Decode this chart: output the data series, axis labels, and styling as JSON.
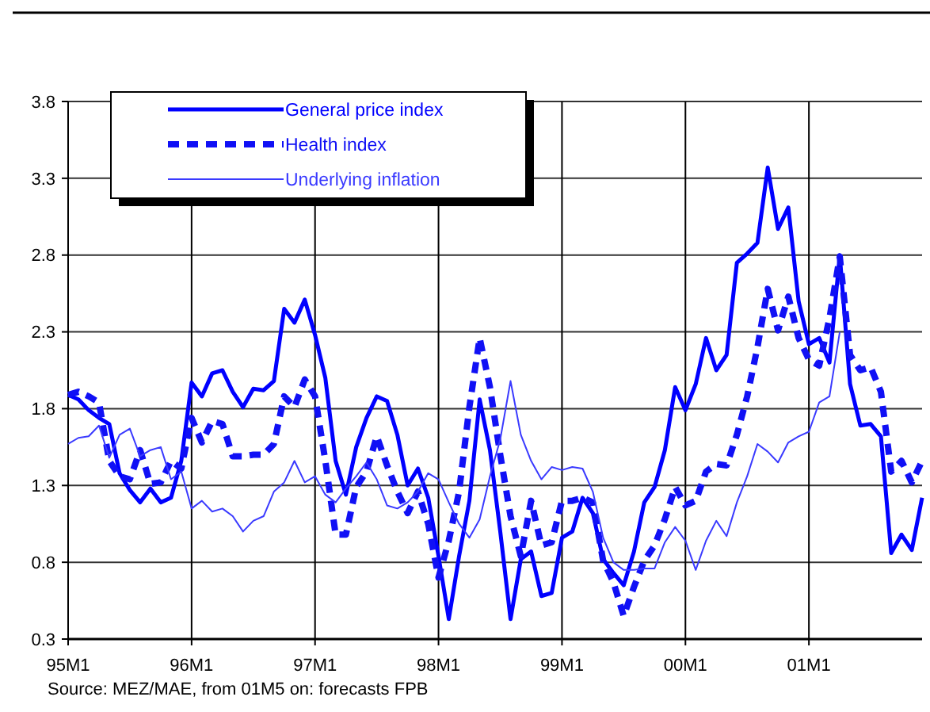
{
  "chart_data": {
    "type": "line",
    "annotations": [
      "Source: MEZ/MAE, from 01M5 on: forecasts FPB"
    ],
    "categories": [
      "95M1",
      null,
      null,
      null,
      null,
      null,
      null,
      null,
      null,
      null,
      null,
      null,
      "96M1",
      null,
      null,
      null,
      null,
      null,
      null,
      null,
      null,
      null,
      null,
      null,
      "97M1",
      null,
      null,
      null,
      null,
      null,
      null,
      null,
      null,
      null,
      null,
      null,
      "98M1",
      null,
      null,
      null,
      null,
      null,
      null,
      null,
      null,
      null,
      null,
      null,
      "99M1",
      null,
      null,
      null,
      null,
      null,
      null,
      null,
      null,
      null,
      null,
      null,
      "00M1",
      null,
      null,
      null,
      null,
      null,
      null,
      null,
      null,
      null,
      null,
      null,
      "01M1",
      null,
      null,
      null,
      null,
      null,
      null,
      null,
      null,
      null,
      null,
      null
    ],
    "series": [
      {
        "name": "General price index",
        "color": "#0000ff",
        "line_style": "solid",
        "values": [
          1.89,
          1.86,
          1.79,
          1.74,
          1.7,
          1.38,
          1.27,
          1.19,
          1.28,
          1.19,
          1.22,
          1.46,
          1.97,
          1.88,
          2.03,
          2.05,
          1.91,
          1.81,
          1.93,
          1.92,
          1.98,
          2.45,
          2.36,
          2.51,
          2.28,
          2.0,
          1.46,
          1.24,
          1.55,
          1.74,
          1.88,
          1.85,
          1.63,
          1.3,
          1.41,
          1.22,
          0.84,
          0.43,
          0.84,
          1.2,
          1.86,
          1.53,
          1.0,
          0.43,
          0.82,
          0.87,
          0.58,
          0.6,
          0.96,
          1.0,
          1.22,
          1.12,
          0.82,
          0.73,
          0.65,
          0.87,
          1.19,
          1.29,
          1.53,
          1.94,
          1.79,
          1.96,
          2.26,
          2.05,
          2.15,
          2.75,
          2.81,
          2.88,
          3.37,
          2.97,
          3.11,
          2.5,
          2.22,
          2.26,
          2.1,
          2.8,
          1.96,
          1.69,
          1.7,
          1.62,
          0.86,
          0.98,
          0.88,
          1.22
        ]
      },
      {
        "name": "Health index",
        "color": "#1010f5",
        "line_style": "dashed",
        "values": [
          1.89,
          1.91,
          1.88,
          1.84,
          1.46,
          1.36,
          1.34,
          1.53,
          1.31,
          1.32,
          1.46,
          1.41,
          1.74,
          1.58,
          1.72,
          1.7,
          1.49,
          1.49,
          1.5,
          1.5,
          1.57,
          1.88,
          1.81,
          1.99,
          1.88,
          1.46,
          0.98,
          0.98,
          1.29,
          1.39,
          1.62,
          1.43,
          1.26,
          1.12,
          1.26,
          1.05,
          0.7,
          0.94,
          1.26,
          1.81,
          2.26,
          1.94,
          1.5,
          1.1,
          0.84,
          1.2,
          0.91,
          0.93,
          1.2,
          1.2,
          1.22,
          1.19,
          0.81,
          0.67,
          0.45,
          0.64,
          0.81,
          0.91,
          1.08,
          1.29,
          1.17,
          1.2,
          1.39,
          1.44,
          1.43,
          1.63,
          1.88,
          2.2,
          2.58,
          2.31,
          2.53,
          2.26,
          2.12,
          2.08,
          2.39,
          2.79,
          2.15,
          2.05,
          2.07,
          1.91,
          1.39,
          1.46,
          1.32,
          1.46
        ]
      },
      {
        "name": "Underlying inflation",
        "color": "#3a3aff",
        "line_style": "solid",
        "values": [
          1.57,
          1.61,
          1.62,
          1.69,
          1.48,
          1.63,
          1.67,
          1.49,
          1.53,
          1.55,
          1.34,
          1.39,
          1.15,
          1.2,
          1.13,
          1.15,
          1.1,
          1.0,
          1.07,
          1.1,
          1.26,
          1.32,
          1.46,
          1.32,
          1.36,
          1.24,
          1.19,
          1.28,
          1.36,
          1.45,
          1.34,
          1.17,
          1.15,
          1.19,
          1.26,
          1.38,
          1.34,
          1.19,
          1.05,
          0.96,
          1.08,
          1.36,
          1.6,
          1.98,
          1.63,
          1.46,
          1.34,
          1.42,
          1.4,
          1.42,
          1.41,
          1.26,
          0.96,
          0.8,
          0.75,
          0.75,
          0.76,
          0.76,
          0.93,
          1.03,
          0.94,
          0.75,
          0.94,
          1.07,
          0.97,
          1.19,
          1.36,
          1.57,
          1.52,
          1.45,
          1.58,
          1.62,
          1.65,
          1.84,
          1.88,
          2.3,
          null,
          null,
          null,
          null,
          null,
          null,
          null,
          null
        ]
      }
    ],
    "ylim": [
      0.3,
      3.8
    ],
    "yticks": [
      0.3,
      0.8,
      1.3,
      1.8,
      2.3,
      2.8,
      3.3,
      3.8
    ],
    "grid": true,
    "legend": "top left"
  }
}
